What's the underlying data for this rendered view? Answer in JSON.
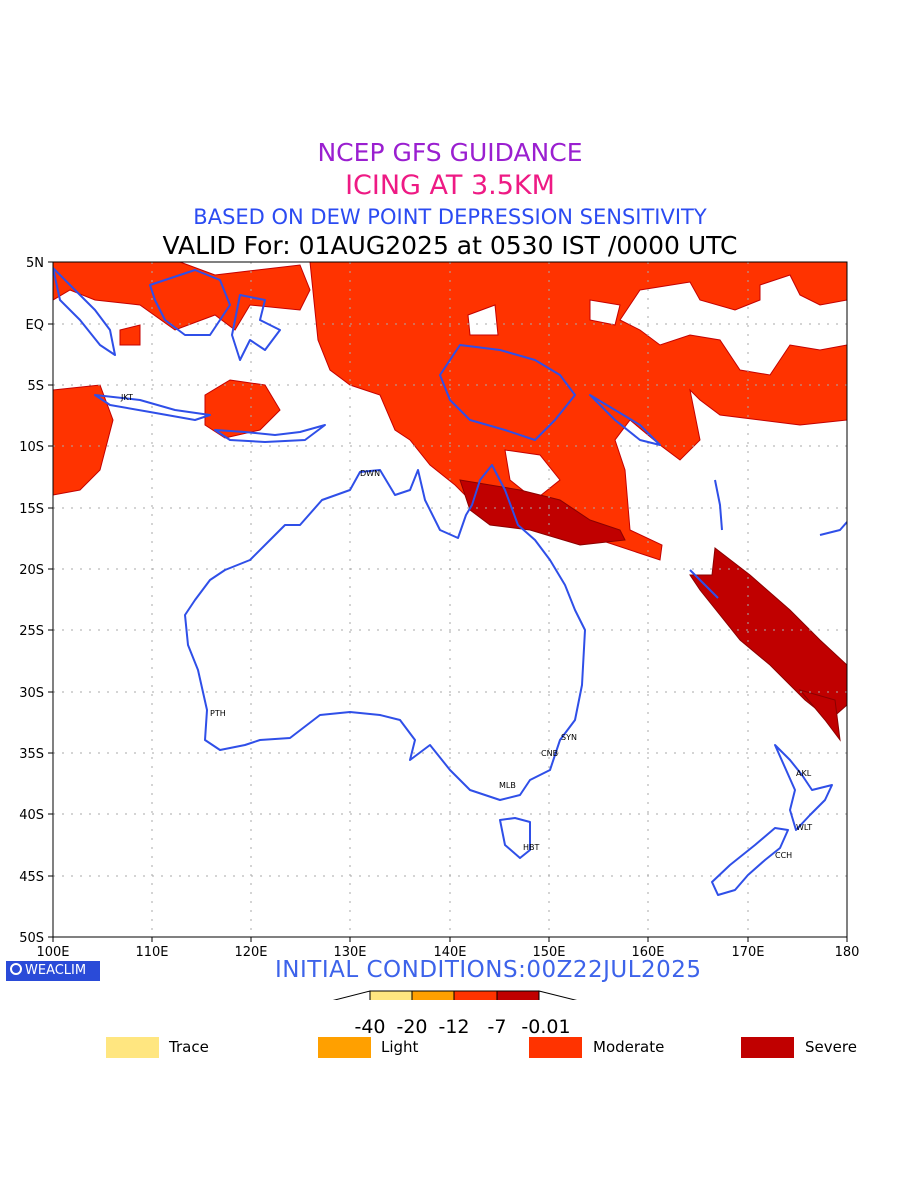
{
  "titles": {
    "line1": "NCEP GFS GUIDANCE",
    "line2": "ICING AT 3.5KM",
    "line3": "BASED ON DEW POINT DEPRESSION SENSITIVITY",
    "line4": "VALID For: 01AUG2025 at 0530 IST /0000 UTC"
  },
  "map": {
    "lat_labels": [
      "5N",
      "EQ",
      "5S",
      "10S",
      "15S",
      "20S",
      "25S",
      "30S",
      "35S",
      "40S",
      "45S",
      "50S"
    ],
    "lon_labels": [
      "100E",
      "110E",
      "120E",
      "130E",
      "140E",
      "150E",
      "160E",
      "170E",
      "180"
    ],
    "lat_range": [
      -50,
      5
    ],
    "lon_range": [
      100,
      180
    ],
    "coastline_color": "#2f4fe8",
    "grid": "dotted",
    "cities": [
      {
        "name": "JKT",
        "lon": 106.8,
        "lat": -6.2
      },
      {
        "name": "DWN",
        "lon": 130.8,
        "lat": -12.4
      },
      {
        "name": "PTH",
        "lon": 115.9,
        "lat": -31.9
      },
      {
        "name": "SYN",
        "lon": 151.2,
        "lat": -33.9
      },
      {
        "name": "CNB",
        "lon": 149.1,
        "lat": -35.3
      },
      {
        "name": "MLB",
        "lon": 145.0,
        "lat": -37.8
      },
      {
        "name": "HBT",
        "lon": 147.3,
        "lat": -42.9
      },
      {
        "name": "AKL",
        "lon": 174.8,
        "lat": -36.8
      },
      {
        "name": "WLT",
        "lon": 174.8,
        "lat": -41.3
      },
      {
        "name": "CCH",
        "lon": 172.6,
        "lat": -43.5
      }
    ]
  },
  "footer": {
    "brand": "WEACLIM",
    "initial_conditions": "INITIAL CONDITIONS:00Z22JUL2025"
  },
  "colorbar": {
    "ticks": [
      "-40",
      "-20",
      "-12",
      "-7",
      "-0.01"
    ],
    "colors": [
      "#ffe680",
      "#ffa000",
      "#ff3300",
      "#c00000"
    ]
  },
  "legend": [
    {
      "label": "Trace",
      "color": "#ffe680"
    },
    {
      "label": "Light",
      "color": "#ffa000"
    },
    {
      "label": "Moderate",
      "color": "#ff3300"
    },
    {
      "label": "Severe",
      "color": "#c00000"
    }
  ]
}
